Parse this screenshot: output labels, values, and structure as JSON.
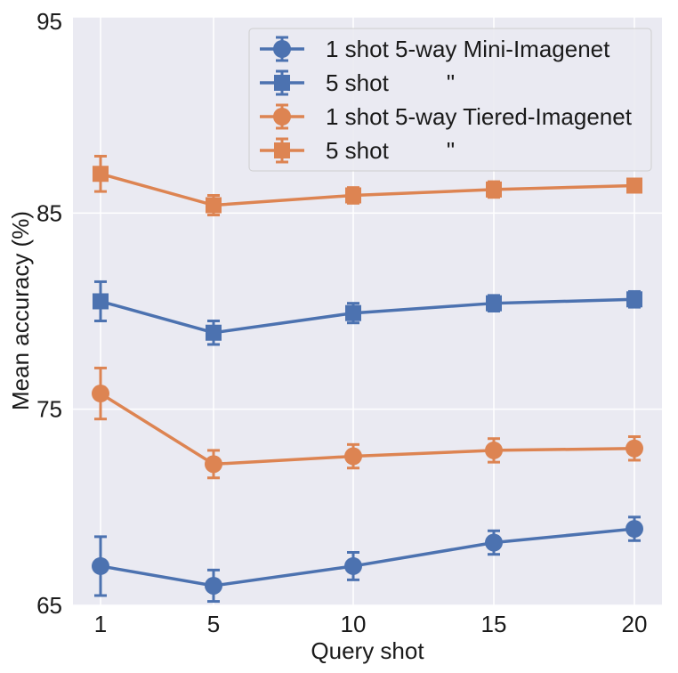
{
  "chart_data": {
    "type": "line",
    "title": "",
    "xlabel": "Query shot",
    "ylabel": "Mean accuracy (%)",
    "x": [
      1,
      5,
      10,
      15,
      20
    ],
    "xticks": [
      "1",
      "5",
      "10",
      "15",
      "20"
    ],
    "yticks": [
      "65",
      "75",
      "85",
      "95"
    ],
    "ylim": [
      65,
      95
    ],
    "grid": true,
    "legend_position": "top-right",
    "series": [
      {
        "name": "1 shot 5-way Mini-Imagenet",
        "legend_label": "1 shot 5-way Mini-Imagenet",
        "marker": "circle",
        "color": "#4c72b0",
        "values": [
          67.0,
          66.0,
          67.0,
          68.2,
          68.9
        ],
        "errors": [
          1.5,
          0.8,
          0.7,
          0.6,
          0.6
        ]
      },
      {
        "name": "5 shot Mini-Imagenet",
        "legend_label": "5 shot         \"",
        "marker": "square",
        "color": "#4c72b0",
        "values": [
          80.5,
          78.9,
          79.9,
          80.4,
          80.6
        ],
        "errors": [
          1.0,
          0.6,
          0.5,
          0.4,
          0.4
        ]
      },
      {
        "name": "1 shot 5-way Tiered-Imagenet",
        "legend_label": "1 shot 5-way Tiered-Imagenet",
        "marker": "circle",
        "color": "#dd8452",
        "values": [
          75.8,
          72.2,
          72.6,
          72.9,
          73.0
        ],
        "errors": [
          1.3,
          0.7,
          0.6,
          0.6,
          0.6
        ]
      },
      {
        "name": "5 shot Tiered-Imagenet",
        "legend_label": "5 shot         \"",
        "marker": "square",
        "color": "#dd8452",
        "values": [
          87.0,
          85.4,
          85.9,
          86.2,
          86.4
        ],
        "errors": [
          0.9,
          0.5,
          0.4,
          0.4,
          0.3
        ]
      }
    ]
  },
  "colors": {
    "plot_bg": "#eaeaf2",
    "grid": "#ffffff"
  }
}
